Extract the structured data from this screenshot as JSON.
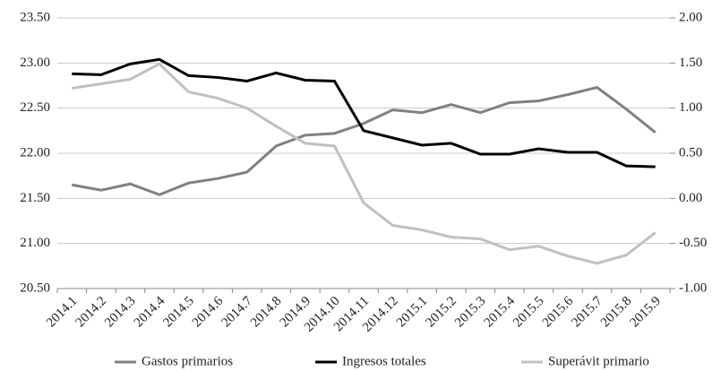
{
  "chart_data": {
    "type": "line",
    "categories": [
      "2014.1",
      "2014.2",
      "2014.3",
      "2014.4",
      "2014.5",
      "2014.6",
      "2014.7",
      "2014.8",
      "2014.9",
      "2014.10",
      "2014.11",
      "2014.12",
      "2015.1",
      "2015.2",
      "2015.3",
      "2015.4",
      "2015.5",
      "2015.6",
      "2015.7",
      "2015.8",
      "2015.9"
    ],
    "series": [
      {
        "name": "Gastos primarios",
        "color": "#808080",
        "values": [
          21.65,
          21.59,
          21.66,
          21.54,
          21.67,
          21.72,
          21.79,
          22.08,
          22.2,
          22.22,
          22.33,
          22.48,
          22.45,
          22.54,
          22.45,
          22.56,
          22.58,
          22.65,
          22.73,
          22.49,
          22.23
        ]
      },
      {
        "name": "Ingresos totales",
        "color": "#000000",
        "values": [
          22.88,
          22.87,
          22.99,
          23.04,
          22.86,
          22.84,
          22.8,
          22.89,
          22.81,
          22.8,
          22.25,
          22.17,
          22.09,
          22.11,
          21.99,
          21.99,
          22.05,
          22.01,
          22.01,
          21.86,
          21.85
        ]
      },
      {
        "name": "Superávit primario",
        "color": "#c0c0c0",
        "axis": "y2",
        "values": [
          1.22,
          1.27,
          1.32,
          1.49,
          1.18,
          1.11,
          1.0,
          0.8,
          0.61,
          0.58,
          -0.05,
          -0.3,
          -0.35,
          -0.43,
          -0.45,
          -0.57,
          -0.53,
          -0.64,
          -0.72,
          -0.63,
          -0.38
        ]
      }
    ],
    "ylim": [
      20.5,
      23.5
    ],
    "yticks": [
      {
        "value": 20.5,
        "label": "20.50"
      },
      {
        "value": 21,
        "label": "21.00"
      },
      {
        "value": 21.5,
        "label": "21.50"
      },
      {
        "value": 22,
        "label": "22.00"
      },
      {
        "value": 22.5,
        "label": "22.50"
      },
      {
        "value": 23,
        "label": "23.00"
      },
      {
        "value": 23.5,
        "label": "23.50"
      }
    ],
    "y2lim": [
      -1,
      2
    ],
    "y2ticks": [
      {
        "value": -1,
        "label": "-1.00"
      },
      {
        "value": -0.5,
        "label": "-0.50"
      },
      {
        "value": 0,
        "label": "0.00"
      },
      {
        "value": 0.5,
        "label": "0.50"
      },
      {
        "value": 1,
        "label": "1.00"
      },
      {
        "value": 1.5,
        "label": "1.50"
      },
      {
        "value": 2,
        "label": "2.00"
      }
    ],
    "grid": true,
    "legend": "bottom"
  }
}
